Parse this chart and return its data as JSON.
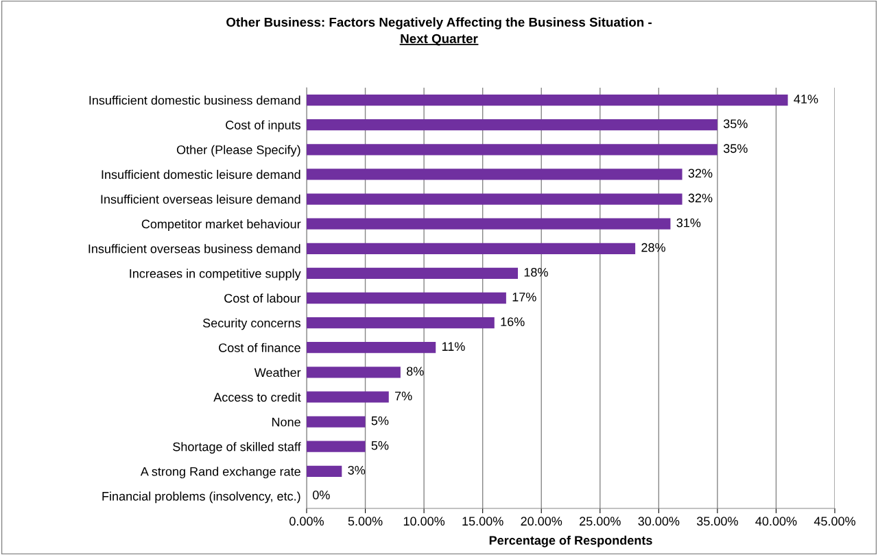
{
  "chart_data": {
    "type": "bar",
    "orientation": "horizontal",
    "title": "Other Business: Factors Negatively Affecting the Business Situation -",
    "subtitle": "Next Quarter",
    "xlabel": "Percentage of Respondents",
    "categories": [
      "Insufficient domestic business demand",
      "Cost of inputs",
      "Other (Please Specify)",
      "Insufficient domestic leisure demand",
      "Insufficient overseas leisure demand",
      "Competitor market behaviour",
      "Insufficient overseas business demand",
      "Increases in competitive supply",
      "Cost of labour",
      "Security concerns",
      "Cost of finance",
      "Weather",
      "Access to credit",
      "None",
      "Shortage of skilled staff",
      "A strong Rand exchange rate",
      "Financial problems (insolvency, etc.)"
    ],
    "values": [
      41,
      35,
      35,
      32,
      32,
      31,
      28,
      18,
      17,
      16,
      11,
      8,
      7,
      5,
      5,
      3,
      0
    ],
    "value_labels": [
      "41%",
      "35%",
      "35%",
      "32%",
      "32%",
      "31%",
      "28%",
      "18%",
      "17%",
      "16%",
      "11%",
      "8%",
      "7%",
      "5%",
      "5%",
      "3%",
      "0%"
    ],
    "color": "#7030a0",
    "xlim": [
      0,
      45
    ],
    "xticks": [
      {
        "value": 0,
        "label": "0.00%"
      },
      {
        "value": 5,
        "label": "5.00%"
      },
      {
        "value": 10,
        "label": "10.00%"
      },
      {
        "value": 15,
        "label": "15.00%"
      },
      {
        "value": 20,
        "label": "20.00%"
      },
      {
        "value": 25,
        "label": "25.00%"
      },
      {
        "value": 30,
        "label": "30.00%"
      },
      {
        "value": 35,
        "label": "35.00%"
      },
      {
        "value": 40,
        "label": "40.00%"
      },
      {
        "value": 45,
        "label": "45.00%"
      }
    ],
    "grid": "x",
    "legend": false
  }
}
